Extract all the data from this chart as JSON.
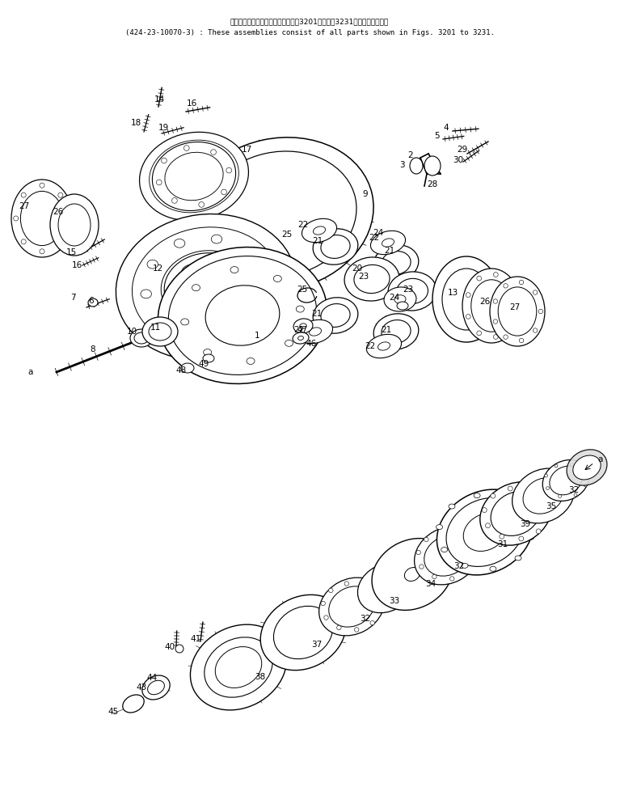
{
  "title_jp": "これらのアセンブリの構成部品は第3201図から第3231図まで含みます。",
  "title_en": "(424-23-10070-3) : These assemblies consist of all parts shown in Figs. 3201 to 3231.",
  "bg_color": "#ffffff",
  "line_color": "#000000",
  "fig_width": 7.67,
  "fig_height": 9.73,
  "dpi": 100
}
